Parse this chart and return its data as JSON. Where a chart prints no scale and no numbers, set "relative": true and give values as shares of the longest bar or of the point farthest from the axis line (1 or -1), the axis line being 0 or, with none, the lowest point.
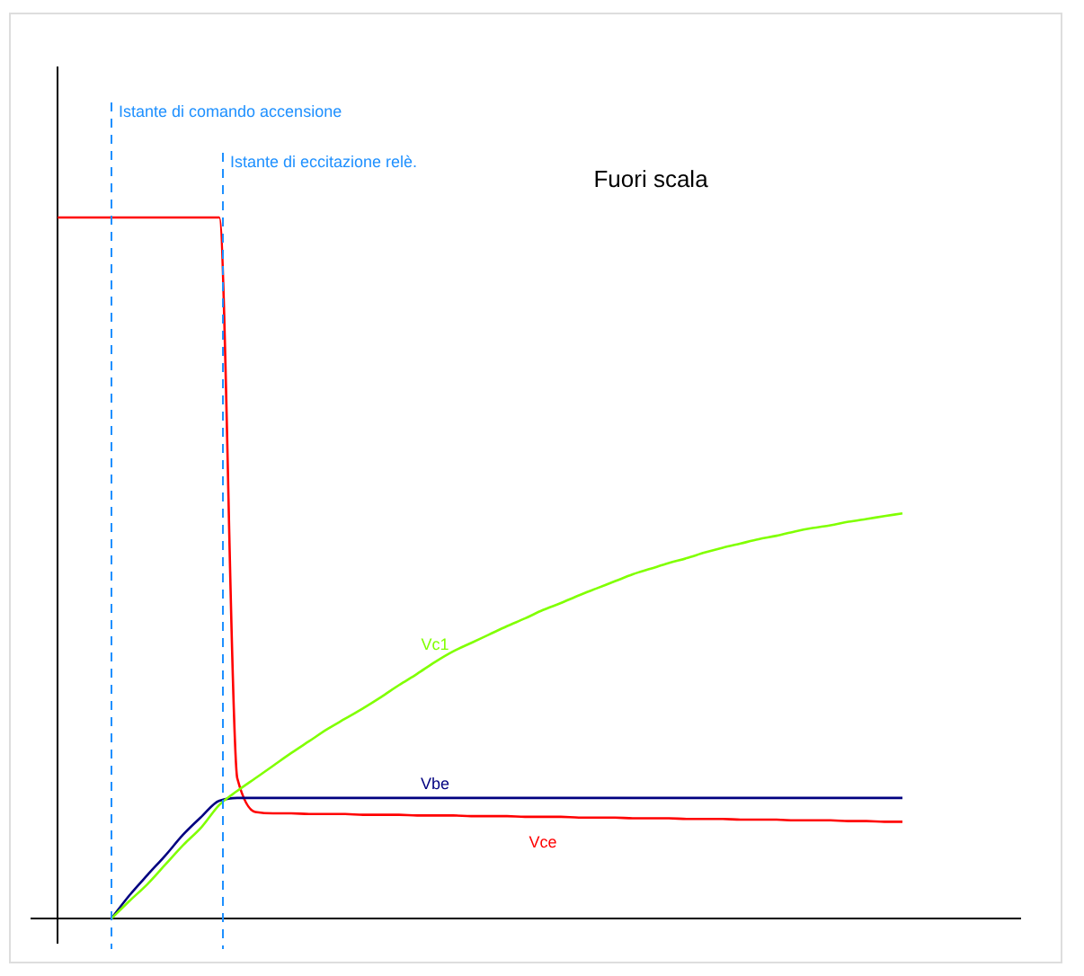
{
  "chart_data": {
    "type": "line",
    "relative": true,
    "categories": [
      null,
      null,
      null,
      null,
      null,
      null,
      null,
      null,
      null,
      null,
      null,
      null,
      null,
      null,
      null,
      null,
      null,
      null,
      null,
      null,
      null,
      null,
      null,
      null,
      null,
      null,
      null,
      null,
      null,
      null,
      null,
      null,
      null,
      null,
      null,
      null,
      null,
      null,
      null,
      null,
      null,
      null,
      null,
      null,
      null,
      null,
      null,
      null,
      null,
      null,
      null,
      null,
      null,
      null
    ],
    "series": [
      {
        "name": "Vce",
        "color": "#ff0000",
        "values": [
          1,
          1,
          1,
          1,
          1,
          1,
          1,
          1,
          1,
          1,
          0.2,
          0.152,
          0.15,
          0.15,
          0.149,
          0.149,
          0.149,
          0.148,
          0.148,
          0.148,
          0.147,
          0.147,
          0.147,
          0.146,
          0.146,
          0.146,
          0.145,
          0.145,
          0.145,
          0.144,
          0.144,
          0.144,
          0.143,
          0.143,
          0.143,
          0.142,
          0.142,
          0.142,
          0.141,
          0.141,
          0.141,
          0.14,
          0.14,
          0.14,
          0.139,
          0.139,
          0.138,
          0.138,
          null,
          null,
          null,
          null,
          null,
          null
        ]
      },
      {
        "name": "Vbe",
        "color": "#000080",
        "values": [
          null,
          null,
          null,
          0,
          0.033,
          0.062,
          0.09,
          0.12,
          0.145,
          0.168,
          0.172,
          0.172,
          0.172,
          0.172,
          0.172,
          0.172,
          0.172,
          0.172,
          0.172,
          0.172,
          0.172,
          0.172,
          0.172,
          0.172,
          0.172,
          0.172,
          0.172,
          0.172,
          0.172,
          0.172,
          0.172,
          0.172,
          0.172,
          0.172,
          0.172,
          0.172,
          0.172,
          0.172,
          0.172,
          0.172,
          0.172,
          0.172,
          0.172,
          0.172,
          0.172,
          0.172,
          0.172,
          0.172,
          null,
          null,
          null,
          null,
          null,
          null
        ]
      },
      {
        "name": "Vc1",
        "color": "#80ff00",
        "values": [
          null,
          null,
          null,
          0,
          0.025,
          0.049,
          0.077,
          0.105,
          0.13,
          0.162,
          0.182,
          0.2,
          0.218,
          0.236,
          0.253,
          0.27,
          0.285,
          0.3,
          0.316,
          0.333,
          0.349,
          0.366,
          0.381,
          0.393,
          0.405,
          0.417,
          0.428,
          0.44,
          0.45,
          0.461,
          0.471,
          0.481,
          0.491,
          0.499,
          0.507,
          0.514,
          0.522,
          0.529,
          0.535,
          0.541,
          0.546,
          0.552,
          0.557,
          0.561,
          0.566,
          0.57,
          0.574,
          0.578,
          null,
          null,
          null,
          null,
          null,
          null
        ]
      }
    ],
    "annotations": [
      "Istante di comando accensione",
      "Istante di eccitazione relè.",
      "Fuori scala"
    ]
  }
}
